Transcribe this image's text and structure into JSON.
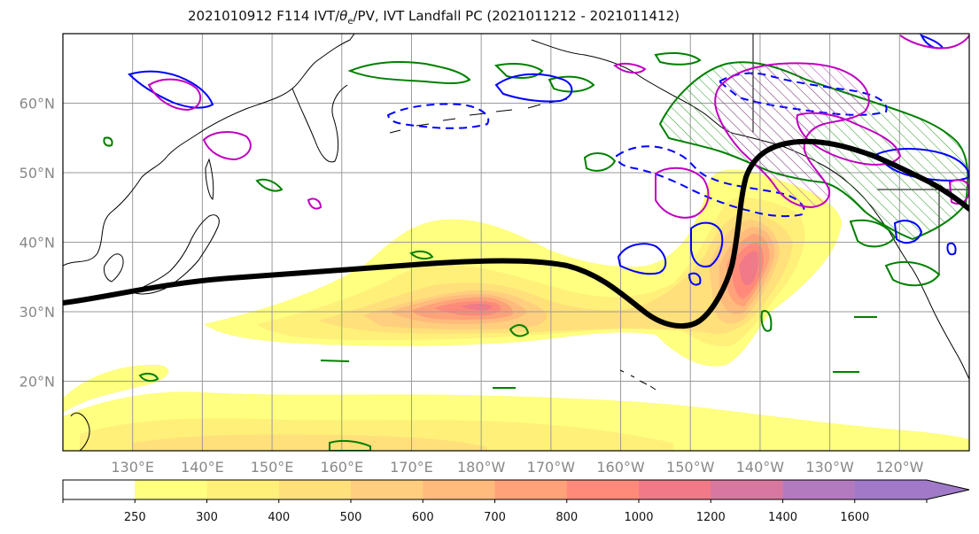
{
  "title": {
    "prefix": "2021010912 F114 IVT/",
    "theta": "θ",
    "sub": "e",
    "suffix": "/PV, IVT Landfall PC (2021011212 - 2021011412)"
  },
  "map": {
    "lon_range_deg_east": [
      120,
      250
    ],
    "lat_range": [
      10,
      70
    ],
    "lat_ticks": [
      {
        "value": 20,
        "label": "20°N"
      },
      {
        "value": 30,
        "label": "30°N"
      },
      {
        "value": 40,
        "label": "40°N"
      },
      {
        "value": 50,
        "label": "50°N"
      },
      {
        "value": 60,
        "label": "60°N"
      }
    ],
    "lon_ticks": [
      {
        "value": 130,
        "label": "130°E"
      },
      {
        "value": 140,
        "label": "140°E"
      },
      {
        "value": 150,
        "label": "150°E"
      },
      {
        "value": 160,
        "label": "160°E"
      },
      {
        "value": 170,
        "label": "170°E"
      },
      {
        "value": 180,
        "label": "180°W"
      },
      {
        "value": 190,
        "label": "170°W"
      },
      {
        "value": 200,
        "label": "160°W"
      },
      {
        "value": 210,
        "label": "150°W"
      },
      {
        "value": 220,
        "label": "140°W"
      },
      {
        "value": 230,
        "label": "130°W"
      },
      {
        "value": 240,
        "label": "120°W"
      }
    ],
    "grid": true,
    "landfall_pc_line_color": "#000000",
    "theta_e_contour_color": "#008000",
    "pv_contour_color": "#0000ff",
    "magenta_contour_color": "#c000c0"
  },
  "colorbar": {
    "levels": [
      "250",
      "300",
      "400",
      "500",
      "600",
      "700",
      "800",
      "1000",
      "1200",
      "1400",
      "1600"
    ],
    "colors": [
      "#ffffff",
      "#ffff80",
      "#fff07a",
      "#ffe07a",
      "#ffce7e",
      "#ffbb7c",
      "#ffa27a",
      "#ff8a7a",
      "#f07a88",
      "#d878a0",
      "#b47ac0",
      "#a07ac8"
    ],
    "extend": "max"
  }
}
